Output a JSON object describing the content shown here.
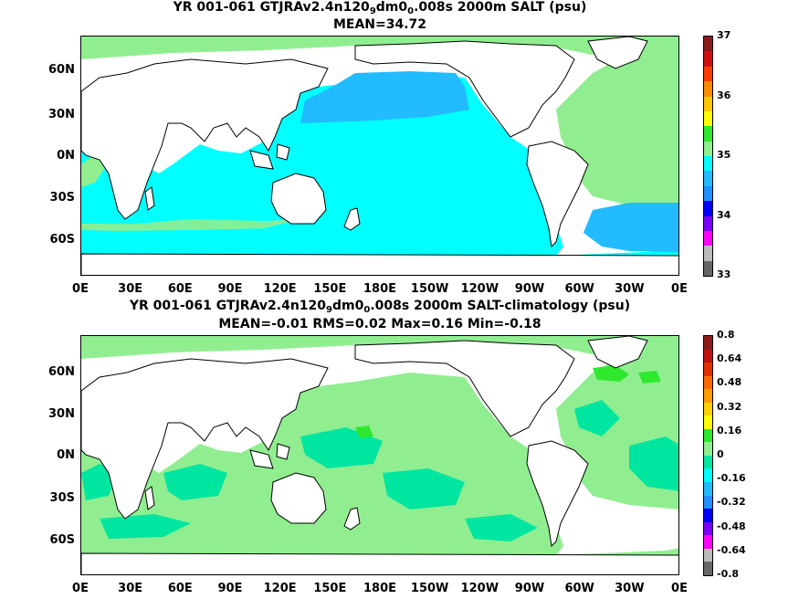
{
  "top": {
    "title_pre": "YR 001-061 GTJRAv2.4n120",
    "sub1": "9",
    "title_mid": "dm0",
    "sub2": "0",
    "title_post": ".008s 2000m SALT (psu)",
    "stats": "MEAN=34.72",
    "colorbar_labels": [
      "37",
      "36",
      "35",
      "34",
      "33"
    ],
    "colorbar_colors": [
      "#8b1a1a",
      "#d01010",
      "#ff3b00",
      "#ff8c00",
      "#ffc800",
      "#ffff00",
      "#2ee82e",
      "#90ee90",
      "#00ffff",
      "#22bbff",
      "#1e90ff",
      "#0000ff",
      "#7b00ff",
      "#ff00ff",
      "#bbbbbb",
      "#666666"
    ]
  },
  "bottom": {
    "title_pre": "YR 001-061 GTJRAv2.4n120",
    "sub1": "9",
    "title_mid": "dm0",
    "sub2": "0",
    "title_post": ".008s 2000m SALT-climatology (psu)",
    "stats": "MEAN=-0.01   RMS=0.02   Max=0.16   Min=-0.18",
    "colorbar_labels": [
      "0.8",
      "0.64",
      "0.48",
      "0.32",
      "0.16",
      "0",
      "-0.16",
      "-0.32",
      "-0.48",
      "-0.64",
      "-0.8"
    ],
    "colorbar_colors": [
      "#8b1a1a",
      "#c01010",
      "#e03000",
      "#ff6a00",
      "#ff9c00",
      "#ffd000",
      "#ffff00",
      "#2ee82e",
      "#90ee90",
      "#00e5a0",
      "#00ffff",
      "#22bbff",
      "#1e90ff",
      "#0000ff",
      "#7b00ff",
      "#ff00ff",
      "#bbbbbb",
      "#666666"
    ]
  },
  "axes": {
    "lat_labels": [
      "60N",
      "30N",
      "0N",
      "30S",
      "60S"
    ],
    "lon_labels": [
      "0E",
      "30E",
      "60E",
      "90E",
      "120E",
      "150E",
      "180E",
      "150W",
      "120W",
      "90W",
      "60W",
      "30W",
      "0E"
    ]
  },
  "colors": {
    "land": "#ffffff",
    "coast": "#000000",
    "top_ocean": "#00ffff",
    "top_pacific": "#22bbff",
    "top_atlantic": "#90ee90",
    "bottom_ocean": "#90ee90",
    "bottom_zero": "#00e5a0",
    "bottom_positive": "#2ee82e"
  }
}
